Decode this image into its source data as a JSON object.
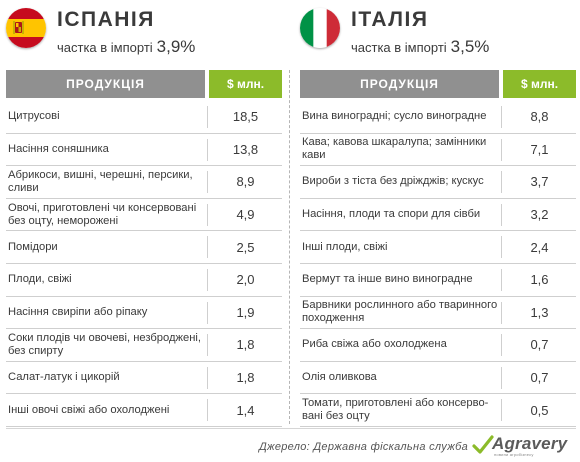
{
  "left": {
    "country": "ІСПАНІЯ",
    "share_label": "частка в імпорті",
    "share_value": "3,9%",
    "col_product": "ПРОДУКЦІЯ",
    "col_value": "$ млн.",
    "flag_colors": {
      "red": "#c60b1e",
      "yellow": "#ffc400"
    },
    "rows": [
      {
        "product": "Цитрусові",
        "value": "18,5"
      },
      {
        "product": "Насіння соняшника",
        "value": "13,8"
      },
      {
        "product": "Абрикоси, вишні, черешні, персики, сливи",
        "value": "8,9"
      },
      {
        "product": "Овочі, приготовлені чи консервовані без оцту, неморожені",
        "value": "4,9"
      },
      {
        "product": "Помідори",
        "value": "2,5"
      },
      {
        "product": "Плоди, свіжі",
        "value": "2,0"
      },
      {
        "product": "Насіння свиріпи або ріпаку",
        "value": "1,9"
      },
      {
        "product": "Соки плодів чи овочеві, незброджені, без спирту",
        "value": "1,8"
      },
      {
        "product": "Салат-латук і цикорій",
        "value": "1,8"
      },
      {
        "product": "Інші овочі свіжі або охолоджені",
        "value": "1,4"
      }
    ]
  },
  "right": {
    "country": "ІТАЛІЯ",
    "share_label": "частка в імпорті",
    "share_value": "3,5%",
    "col_product": "ПРОДУКЦІЯ",
    "col_value": "$ млн.",
    "flag_colors": {
      "green": "#009246",
      "white": "#ffffff",
      "red": "#ce2b37"
    },
    "rows": [
      {
        "product": "Вина виноградні; сусло виноградне",
        "value": "8,8"
      },
      {
        "product": "Кава; кавова шкаралупа; замінники кави",
        "value": "7,1"
      },
      {
        "product": "Вироби з тіста без дріжджів; кускус",
        "value": "3,7"
      },
      {
        "product": "Насіння, плоди та спори для сівби",
        "value": "3,2"
      },
      {
        "product": "Інші плоди, свіжі",
        "value": "2,4"
      },
      {
        "product": "Вермут та інше вино виноградне",
        "value": "1,6"
      },
      {
        "product": "Барвники рослинного або тваринного походження",
        "value": "1,3"
      },
      {
        "product": "Риба свіжа або охолоджена",
        "value": "0,7"
      },
      {
        "product": "Олія оливкова",
        "value": "0,7"
      },
      {
        "product": "Томати, приготовлені або консерво-вані без оцту",
        "value": "0,5"
      }
    ]
  },
  "footer": {
    "source": "Джерело: Державна фіскальна служба",
    "logo_text": "Agravery",
    "logo_sub": "новини агробізнесу"
  },
  "colors": {
    "header_gray": "#909090",
    "accent_green": "#8cbb2a",
    "text": "#3a3a3a"
  }
}
